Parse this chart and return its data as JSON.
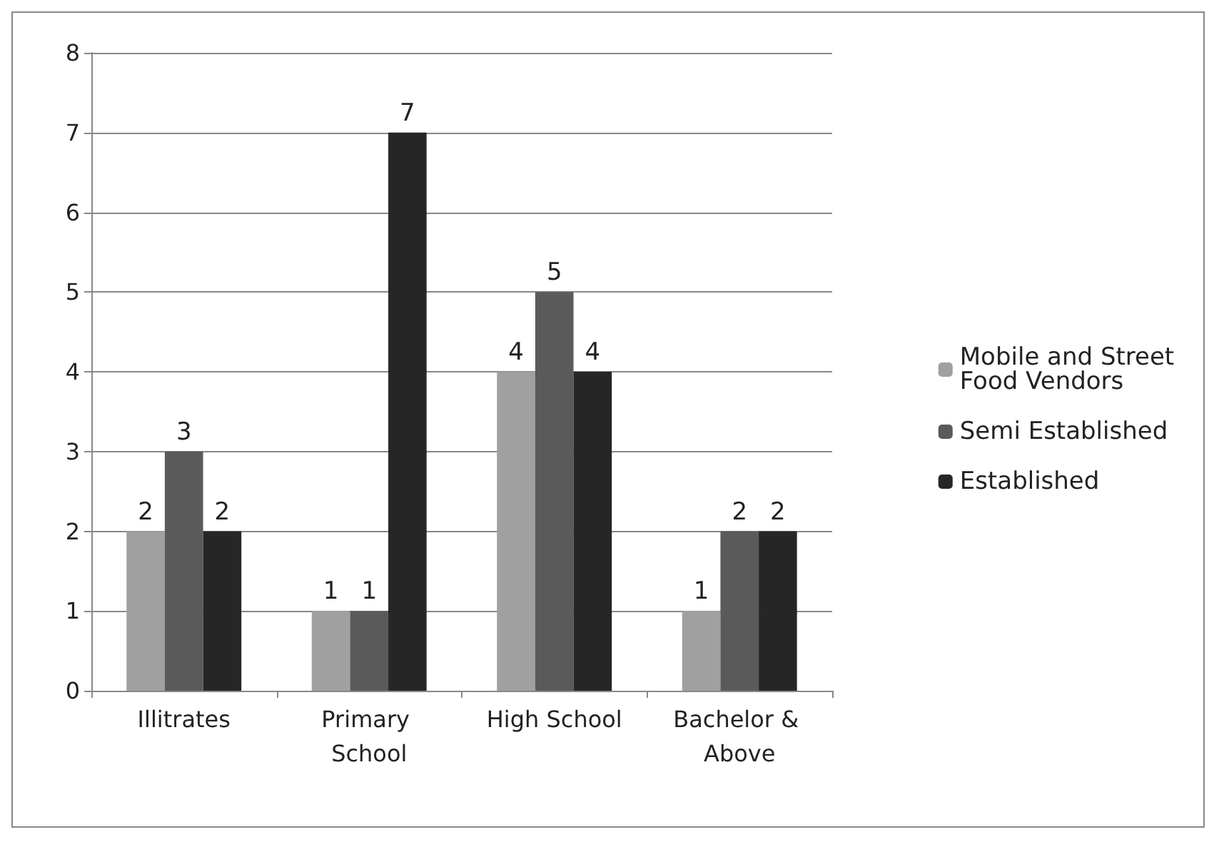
{
  "chart_data": {
    "type": "bar",
    "categories": [
      "Illitrates",
      "Primary School",
      "High School",
      "Bachelor & Above"
    ],
    "series": [
      {
        "name": "Mobile and Street Food Vendors",
        "color": "#a0a0a0",
        "values": [
          2,
          1,
          4,
          1
        ]
      },
      {
        "name": "Semi Established",
        "color": "#5a5a5a",
        "values": [
          3,
          1,
          5,
          2
        ]
      },
      {
        "name": "Established",
        "color": "#262626",
        "values": [
          2,
          7,
          4,
          2
        ]
      }
    ],
    "ylim": [
      0,
      8
    ],
    "yticks": [
      0,
      1,
      2,
      3,
      4,
      5,
      6,
      7,
      8
    ],
    "grid": "y",
    "legend": "right",
    "data_labels": true
  }
}
